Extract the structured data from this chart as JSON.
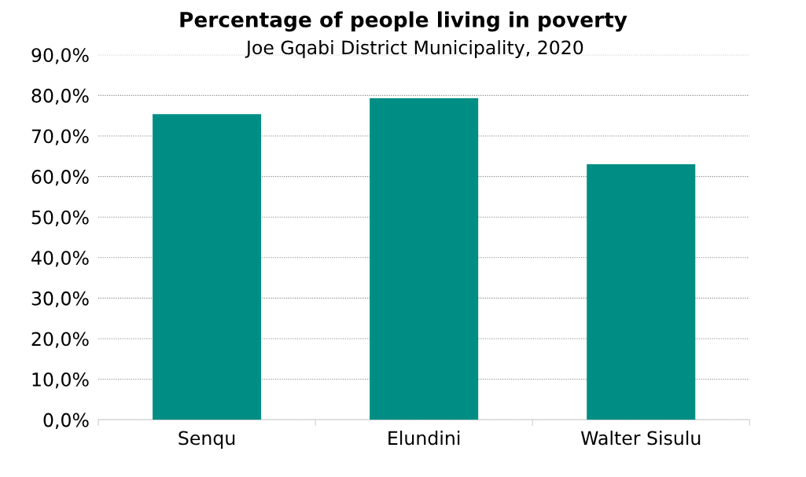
{
  "chart_data": {
    "type": "bar",
    "title": "Percentage of people living in poverty",
    "subtitle": "Joe Gqabi District Municipality, 2020",
    "categories": [
      "Senqu",
      "Elundini",
      "Walter Sisulu"
    ],
    "values": [
      75.4,
      79.3,
      63.0
    ],
    "color": "#008e84",
    "ylim": [
      0,
      90
    ],
    "yticks": [
      {
        "value": 0,
        "label": "0,0%"
      },
      {
        "value": 10,
        "label": "10,0%"
      },
      {
        "value": 20,
        "label": "20,0%"
      },
      {
        "value": 30,
        "label": "30,0%"
      },
      {
        "value": 40,
        "label": "40,0%"
      },
      {
        "value": 50,
        "label": "50,0%"
      },
      {
        "value": 60,
        "label": "60,0%"
      },
      {
        "value": 70,
        "label": "70,0%"
      },
      {
        "value": 80,
        "label": "80,0%"
      },
      {
        "value": 90,
        "label": "90,0%"
      }
    ],
    "grid": "y"
  }
}
